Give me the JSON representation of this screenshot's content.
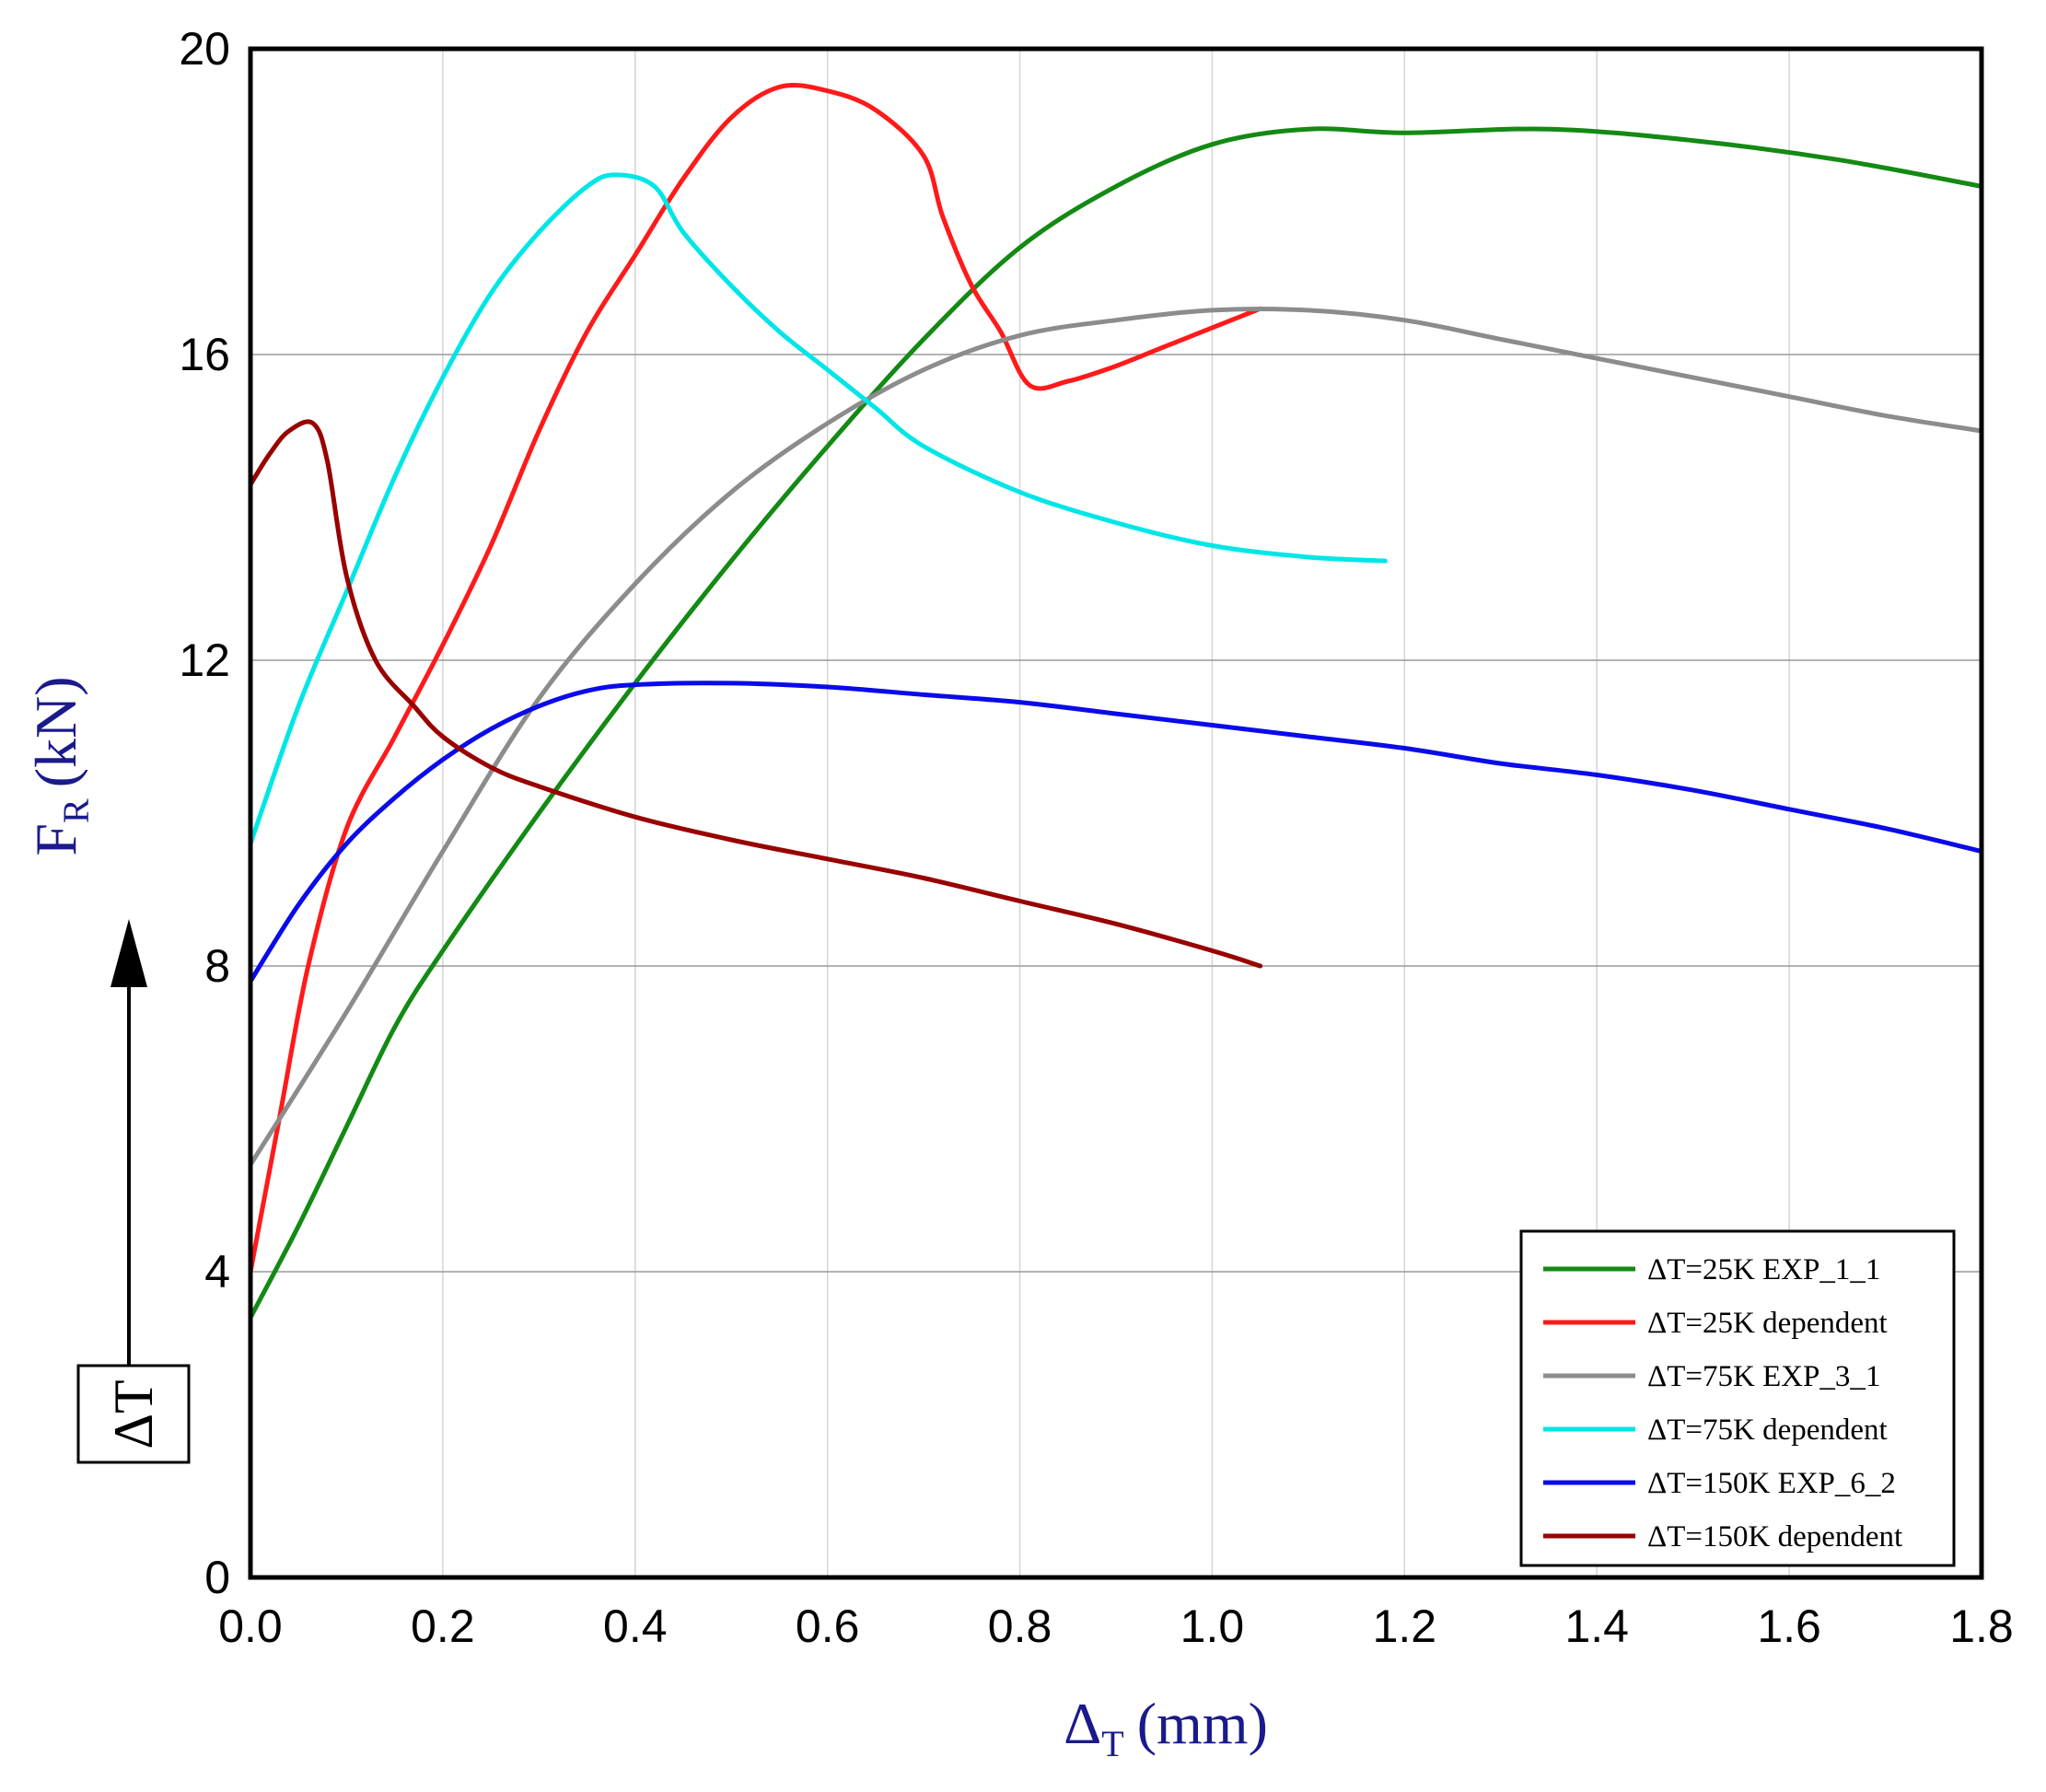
{
  "chart_data": {
    "type": "line",
    "title": "",
    "xlabel": {
      "symbol": "Δ",
      "subscript": "T",
      "unit": "(mm)"
    },
    "ylabel": {
      "symbol": "F",
      "subscript": "R",
      "unit": "(kN)"
    },
    "xlim": [
      0,
      1.8
    ],
    "ylim": [
      0,
      20
    ],
    "x_ticks": [
      "0.0",
      "0.2",
      "0.4",
      "0.6",
      "0.8",
      "1.0",
      "1.2",
      "1.4",
      "1.6",
      "1.8"
    ],
    "y_ticks": [
      "0",
      "4",
      "8",
      "12",
      "16",
      "20"
    ],
    "grid": true,
    "legend_position": "bottom-right",
    "annotation": {
      "text": "ΔT",
      "meaning": "arrow pointing up (increasing ΔT)"
    },
    "series": [
      {
        "name": "ΔT=25K EXP_1_1",
        "color": "#138a13",
        "points": [
          [
            0,
            3.4
          ],
          [
            0.05,
            4.6
          ],
          [
            0.1,
            5.9
          ],
          [
            0.15,
            7.2
          ],
          [
            0.2,
            8.2
          ],
          [
            0.3,
            10.0
          ],
          [
            0.4,
            11.7
          ],
          [
            0.5,
            13.3
          ],
          [
            0.6,
            14.8
          ],
          [
            0.7,
            16.2
          ],
          [
            0.8,
            17.4
          ],
          [
            0.9,
            18.2
          ],
          [
            1.0,
            18.75
          ],
          [
            1.1,
            18.95
          ],
          [
            1.2,
            18.9
          ],
          [
            1.35,
            18.95
          ],
          [
            1.5,
            18.8
          ],
          [
            1.65,
            18.55
          ],
          [
            1.8,
            18.2
          ]
        ]
      },
      {
        "name": "ΔT=25K dependent",
        "color": "#ff1a1a",
        "points": [
          [
            0,
            4.0
          ],
          [
            0.03,
            6.0
          ],
          [
            0.06,
            8.0
          ],
          [
            0.1,
            9.8
          ],
          [
            0.15,
            11.0
          ],
          [
            0.2,
            12.2
          ],
          [
            0.25,
            13.5
          ],
          [
            0.3,
            15.0
          ],
          [
            0.35,
            16.3
          ],
          [
            0.4,
            17.3
          ],
          [
            0.45,
            18.3
          ],
          [
            0.5,
            19.1
          ],
          [
            0.55,
            19.5
          ],
          [
            0.6,
            19.45
          ],
          [
            0.65,
            19.2
          ],
          [
            0.7,
            18.6
          ],
          [
            0.72,
            17.8
          ],
          [
            0.75,
            16.9
          ],
          [
            0.78,
            16.3
          ],
          [
            0.81,
            15.6
          ],
          [
            0.85,
            15.65
          ],
          [
            0.9,
            15.85
          ],
          [
            0.95,
            16.1
          ],
          [
            1.0,
            16.35
          ],
          [
            1.05,
            16.6
          ]
        ]
      },
      {
        "name": "ΔT=75K EXP_3_1",
        "color": "#8c8c8c",
        "points": [
          [
            0,
            5.4
          ],
          [
            0.1,
            7.4
          ],
          [
            0.2,
            9.5
          ],
          [
            0.3,
            11.5
          ],
          [
            0.4,
            13.0
          ],
          [
            0.5,
            14.2
          ],
          [
            0.6,
            15.1
          ],
          [
            0.7,
            15.8
          ],
          [
            0.8,
            16.25
          ],
          [
            0.9,
            16.45
          ],
          [
            1.0,
            16.58
          ],
          [
            1.1,
            16.58
          ],
          [
            1.2,
            16.45
          ],
          [
            1.3,
            16.2
          ],
          [
            1.4,
            15.95
          ],
          [
            1.5,
            15.7
          ],
          [
            1.6,
            15.45
          ],
          [
            1.7,
            15.2
          ],
          [
            1.8,
            15.0
          ]
        ]
      },
      {
        "name": "ΔT=75K dependent",
        "color": "#00e6e6",
        "points": [
          [
            0,
            9.6
          ],
          [
            0.05,
            11.4
          ],
          [
            0.1,
            12.9
          ],
          [
            0.15,
            14.4
          ],
          [
            0.2,
            15.7
          ],
          [
            0.25,
            16.8
          ],
          [
            0.3,
            17.6
          ],
          [
            0.35,
            18.2
          ],
          [
            0.38,
            18.35
          ],
          [
            0.42,
            18.2
          ],
          [
            0.45,
            17.6
          ],
          [
            0.5,
            16.9
          ],
          [
            0.55,
            16.3
          ],
          [
            0.6,
            15.8
          ],
          [
            0.65,
            15.3
          ],
          [
            0.7,
            14.8
          ],
          [
            0.8,
            14.2
          ],
          [
            0.9,
            13.8
          ],
          [
            1.0,
            13.5
          ],
          [
            1.1,
            13.35
          ],
          [
            1.18,
            13.3
          ]
        ]
      },
      {
        "name": "ΔT=150K EXP_6_2",
        "color": "#0a0aeb",
        "points": [
          [
            0,
            7.8
          ],
          [
            0.05,
            8.8
          ],
          [
            0.1,
            9.6
          ],
          [
            0.15,
            10.2
          ],
          [
            0.2,
            10.7
          ],
          [
            0.25,
            11.1
          ],
          [
            0.3,
            11.4
          ],
          [
            0.35,
            11.6
          ],
          [
            0.4,
            11.68
          ],
          [
            0.5,
            11.7
          ],
          [
            0.6,
            11.65
          ],
          [
            0.7,
            11.55
          ],
          [
            0.8,
            11.45
          ],
          [
            0.9,
            11.3
          ],
          [
            1.0,
            11.15
          ],
          [
            1.1,
            11.0
          ],
          [
            1.2,
            10.85
          ],
          [
            1.3,
            10.65
          ],
          [
            1.4,
            10.5
          ],
          [
            1.5,
            10.3
          ],
          [
            1.6,
            10.05
          ],
          [
            1.7,
            9.8
          ],
          [
            1.8,
            9.5
          ]
        ]
      },
      {
        "name": "ΔT=150K dependent",
        "color": "#990000",
        "points": [
          [
            0,
            14.3
          ],
          [
            0.02,
            14.7
          ],
          [
            0.04,
            15.0
          ],
          [
            0.065,
            15.1
          ],
          [
            0.08,
            14.6
          ],
          [
            0.1,
            13.1
          ],
          [
            0.13,
            12.0
          ],
          [
            0.17,
            11.4
          ],
          [
            0.2,
            11.0
          ],
          [
            0.25,
            10.6
          ],
          [
            0.3,
            10.35
          ],
          [
            0.4,
            9.95
          ],
          [
            0.5,
            9.65
          ],
          [
            0.6,
            9.4
          ],
          [
            0.7,
            9.15
          ],
          [
            0.8,
            8.85
          ],
          [
            0.9,
            8.55
          ],
          [
            1.0,
            8.2
          ],
          [
            1.05,
            8.0
          ]
        ]
      }
    ]
  }
}
